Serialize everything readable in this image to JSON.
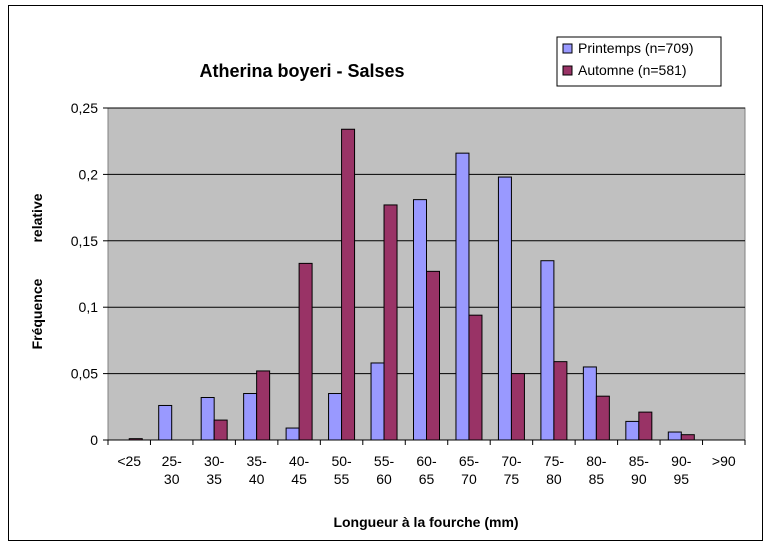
{
  "chart_data": {
    "type": "bar",
    "title": "Atherina boyeri - Salses",
    "xlabel": "Longueur à la fourche (mm)",
    "ylabel": [
      "Fréquence",
      "relative"
    ],
    "ylim": [
      0,
      0.25
    ],
    "yticks": [
      "0",
      "0,05",
      "0,1",
      "0,15",
      "0,2",
      "0,25"
    ],
    "grid": true,
    "legend_position": "top-right",
    "categories": [
      [
        "<25"
      ],
      [
        "25-",
        "30"
      ],
      [
        "30-",
        "35"
      ],
      [
        "35-",
        "40"
      ],
      [
        "40-",
        "45"
      ],
      [
        "50-",
        "55"
      ],
      [
        "55-",
        "60"
      ],
      [
        "60-",
        "65"
      ],
      [
        "65-",
        "70"
      ],
      [
        "70-",
        "75"
      ],
      [
        "75-",
        "80"
      ],
      [
        "80-",
        "85"
      ],
      [
        "85-",
        "90"
      ],
      [
        "90-",
        "95"
      ],
      [
        ">90"
      ]
    ],
    "series": [
      {
        "name": "Printemps (n=709)",
        "color": "#9999ff",
        "values": [
          0,
          0.026,
          0.032,
          0.035,
          0.009,
          0.035,
          0.058,
          0.181,
          0.216,
          0.198,
          0.135,
          0.055,
          0.014,
          0.006,
          0
        ]
      },
      {
        "name": "Automne (n=581)",
        "color": "#993366",
        "values": [
          0.001,
          0,
          0.015,
          0.052,
          0.133,
          0.234,
          0.177,
          0.127,
          0.094,
          0.05,
          0.059,
          0.033,
          0.021,
          0.004,
          0
        ]
      }
    ]
  }
}
